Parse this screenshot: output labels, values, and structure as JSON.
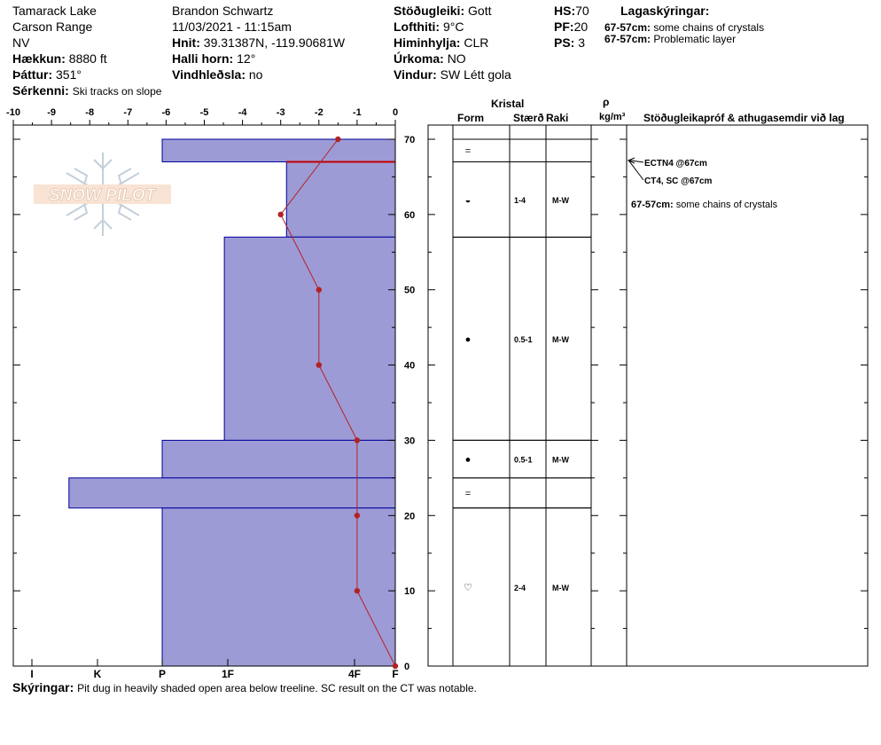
{
  "header": {
    "col1": [
      "Tamarack Lake",
      "Carson Range",
      "NV"
    ],
    "elevation_label": "Hækkun:",
    "elevation": "8880 ft",
    "aspect_label": "Þáttur:",
    "aspect": "351°",
    "observer": "Brandon Schwartz",
    "datetime": "11/03/2021 - 11:15am",
    "coords_label": "Hnit:",
    "coords": "39.31387N, -119.90681W",
    "slope_label": "Halli horn:",
    "slope": "12°",
    "wind_loading_label": "Vindhleðsla:",
    "wind_loading": "no",
    "stability_label": "Stöðugleiki:",
    "stability": "Gott",
    "air_temp_label": "Lofthiti:",
    "air_temp": "9°C",
    "sky_label": "Himinhylja:",
    "sky": "CLR",
    "precip_label": "Úrkoma:",
    "precip": "NO",
    "wind_label": "Vindur:",
    "wind": "SW Létt gola",
    "hs_label": "HS:",
    "hs": "70",
    "pf_label": "PF:",
    "pf": "20",
    "ps_label": "PS:",
    "ps": "3",
    "layer_notes_label": "Lagaskýringar:",
    "layer_notes": [
      {
        "range": "67-57cm:",
        "text": "some chains of crystals"
      },
      {
        "range": "67-57cm:",
        "text": "Problematic layer"
      }
    ],
    "features_label": "Sérkenni:",
    "features": "Ski tracks on slope"
  },
  "columns": {
    "crystal": "Kristal",
    "form": "Form",
    "size": "Stærð",
    "moisture": "Raki",
    "rho": "ρ",
    "density_unit": "kg/m³",
    "tests": "Stöðugleikapróf & athugasemdir við lag"
  },
  "logo_text": "SNOW PILOT",
  "colors": {
    "hardness_fill": "#9d9bd6",
    "hardness_edge": "#00009b",
    "temp_line": "#b22222"
  },
  "chart_data": {
    "type": "bar",
    "orientation": "horizontal",
    "temperature_axis": {
      "ticks": [
        "-10",
        "-9",
        "-8",
        "-7",
        "-6",
        "-5",
        "-4",
        "-3",
        "-2",
        "-1",
        "0"
      ],
      "range": [
        -10,
        0
      ]
    },
    "depth_axis": {
      "ticks": [
        "70",
        "60",
        "50",
        "40",
        "30",
        "20",
        "10",
        "0"
      ],
      "range": [
        0,
        70
      ]
    },
    "hardness_axis": {
      "ticks": [
        "I",
        "K",
        "P",
        "1F",
        "4F",
        "F"
      ],
      "range": [
        0,
        6
      ]
    },
    "hardness_layers": [
      {
        "top": 70,
        "bottom": 67,
        "hardness": 3
      },
      {
        "top": 67,
        "bottom": 57,
        "hardness": 1.4
      },
      {
        "top": 57,
        "bottom": 30,
        "hardness": 2.2
      },
      {
        "top": 30,
        "bottom": 25,
        "hardness": 3
      },
      {
        "top": 25,
        "bottom": 21,
        "hardness": 4.2
      },
      {
        "top": 21,
        "bottom": 0,
        "hardness": 3
      }
    ],
    "problem_layer_depth": 67,
    "temperature_profile": [
      {
        "depth": 70,
        "temp": -1.5
      },
      {
        "depth": 60,
        "temp": -3
      },
      {
        "depth": 50,
        "temp": -2
      },
      {
        "depth": 40,
        "temp": -2
      },
      {
        "depth": 30,
        "temp": -1
      },
      {
        "depth": 20,
        "temp": -1
      },
      {
        "depth": 10,
        "temp": -1
      },
      {
        "depth": 0,
        "temp": 0
      }
    ],
    "layers": [
      {
        "top": 70,
        "bottom": 67,
        "form": "=",
        "size": "",
        "moisture": ""
      },
      {
        "top": 67,
        "bottom": 57,
        "form": "◒",
        "size": "1-4",
        "moisture": "M-W"
      },
      {
        "top": 57,
        "bottom": 30,
        "form": "●",
        "size": "0.5-1",
        "moisture": "M-W"
      },
      {
        "top": 30,
        "bottom": 25,
        "form": "●",
        "size": "0.5-1",
        "moisture": "M-W"
      },
      {
        "top": 25,
        "bottom": 21,
        "form": "=",
        "size": "",
        "moisture": ""
      },
      {
        "top": 21,
        "bottom": 0,
        "form": "♡",
        "size": "2-4",
        "moisture": "M-W"
      }
    ],
    "stability_tests": [
      {
        "text": "ECTN4 @67cm",
        "depth": 67
      },
      {
        "text": "CT4, SC @67cm",
        "depth": 67
      }
    ],
    "layer_comment": {
      "range": "67-57cm:",
      "text": "some chains of crystals"
    }
  },
  "footer": {
    "notes_label": "Skýringar:",
    "notes": "Pit dug in heavily shaded open area below treeline. SC result on the CT was notable."
  }
}
